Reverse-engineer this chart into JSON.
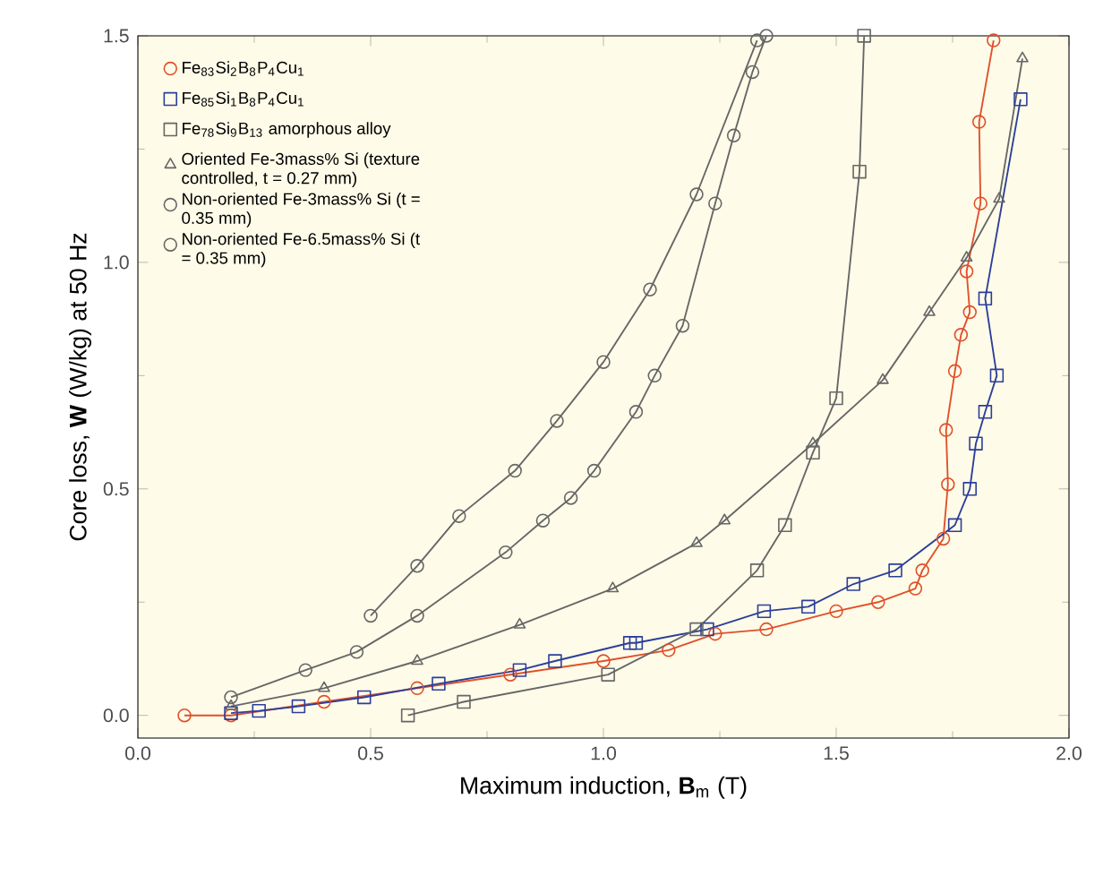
{
  "chart_data": {
    "type": "line",
    "xlabel": "Maximum induction, **B**$_{m}$ (T)",
    "ylabel": "Core loss, **W** (W/kg) at 50 Hz",
    "xlim": [
      0,
      2
    ],
    "ylim": [
      -0.05,
      1.5
    ],
    "xticks": [
      {
        "value": 0,
        "label": "0.0"
      },
      {
        "value": 0.5,
        "label": "0.5"
      },
      {
        "value": 1,
        "label": "1.0"
      },
      {
        "value": 1.5,
        "label": "1.5"
      },
      {
        "value": 2,
        "label": "2.0"
      }
    ],
    "yticks": [
      {
        "value": 0,
        "label": "0.0"
      },
      {
        "value": 0.5,
        "label": "0.5"
      },
      {
        "value": 1,
        "label": "1.0"
      },
      {
        "value": 1.5,
        "label": "1.5"
      }
    ],
    "grid": false,
    "legend": "top left",
    "line_style": "solid",
    "series": [
      {
        "name": "Fe$_{83}$Si$_{2}$B$_{8}$P$_{4}$Cu$_{1}$",
        "color": "#e0502a",
        "marker": "circle",
        "x": [
          0.1,
          0.2,
          0.4,
          0.6,
          0.8,
          1.0,
          1.14,
          1.24,
          1.35,
          1.5,
          1.59,
          1.67,
          1.685,
          1.73,
          1.74,
          1.736,
          1.755,
          1.768,
          1.787,
          1.78,
          1.81,
          1.807,
          1.838
        ],
        "values": [
          0.0,
          0.0,
          0.03,
          0.06,
          0.09,
          0.12,
          0.144,
          0.18,
          0.19,
          0.23,
          0.25,
          0.28,
          0.32,
          0.39,
          0.51,
          0.63,
          0.76,
          0.84,
          0.89,
          0.98,
          1.13,
          1.31,
          1.49
        ]
      },
      {
        "name": "Fe$_{85}$Si$_{1}$B$_{8}$P$_{4}$Cu$_{1}$",
        "color": "#2b3f9a",
        "marker": "square",
        "x": [
          0.2,
          0.26,
          0.345,
          0.486,
          0.646,
          0.82,
          0.896,
          1.057,
          1.07,
          1.223,
          1.345,
          1.44,
          1.537,
          1.627,
          1.755,
          1.787,
          1.8,
          1.82,
          1.845,
          1.82,
          1.896
        ],
        "values": [
          0.005,
          0.01,
          0.02,
          0.04,
          0.07,
          0.1,
          0.12,
          0.16,
          0.16,
          0.19,
          0.23,
          0.24,
          0.29,
          0.32,
          0.42,
          0.5,
          0.6,
          0.67,
          0.75,
          0.92,
          1.36
        ]
      },
      {
        "name": "Fe$_{78}$Si$_{9}$B$_{13}$ amorphous alloy",
        "color": "#666666",
        "marker": "square",
        "x": [
          0.58,
          0.7,
          1.01,
          1.2,
          1.33,
          1.39,
          1.45,
          1.5,
          1.55,
          1.56
        ],
        "values": [
          0.0,
          0.03,
          0.09,
          0.19,
          0.32,
          0.42,
          0.58,
          0.7,
          1.2,
          1.5
        ]
      },
      {
        "name": "Oriented Fe-3mass% Si (texture controlled, t = 0.27 mm)",
        "color": "#666666",
        "marker": "triangle",
        "x": [
          0.2,
          0.4,
          0.6,
          0.82,
          1.02,
          1.2,
          1.26,
          1.45,
          1.6,
          1.7,
          1.78,
          1.85,
          1.9
        ],
        "values": [
          0.02,
          0.06,
          0.12,
          0.2,
          0.28,
          0.38,
          0.43,
          0.6,
          0.74,
          0.89,
          1.01,
          1.14,
          1.45
        ]
      },
      {
        "name": "Non-oriented Fe-3mass% Si (t = 0.35 mm)",
        "color": "#666666",
        "marker": "circle",
        "x": [
          0.5,
          0.6,
          0.69,
          0.81,
          0.9,
          1.0,
          1.1,
          1.2,
          1.33
        ],
        "values": [
          0.22,
          0.33,
          0.44,
          0.54,
          0.65,
          0.78,
          0.94,
          1.15,
          1.49
        ]
      },
      {
        "name": "Non-oriented Fe-6.5mass% Si (t = 0.35 mm)",
        "color": "#666666",
        "marker": "circle",
        "x": [
          0.2,
          0.36,
          0.47,
          0.6,
          0.79,
          0.87,
          0.93,
          0.98,
          1.07,
          1.11,
          1.17,
          1.24,
          1.28,
          1.32,
          1.35
        ],
        "values": [
          0.04,
          0.1,
          0.14,
          0.22,
          0.36,
          0.43,
          0.48,
          0.54,
          0.67,
          0.75,
          0.86,
          1.13,
          1.28,
          1.42,
          1.5
        ]
      }
    ]
  }
}
